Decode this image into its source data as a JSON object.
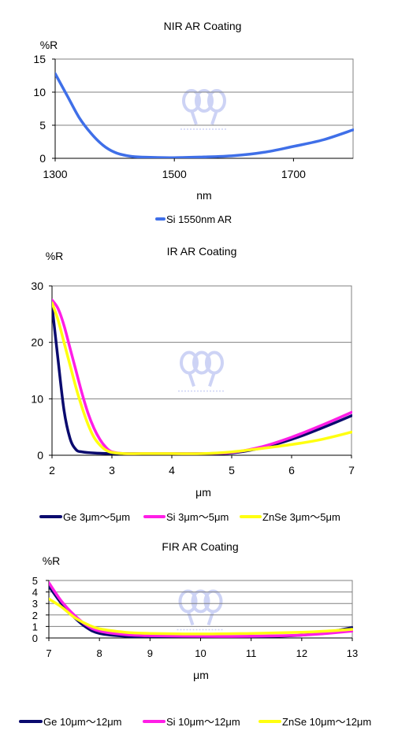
{
  "colors": {
    "nir_si": "#3f6fe8",
    "ge": "#0a0a6e",
    "si": "#ff1ee6",
    "znse": "#ffff10",
    "grid": "#808080",
    "watermark": "#c8cff5"
  },
  "chart_data": [
    {
      "id": "nir",
      "type": "line",
      "title": "NIR AR Coating",
      "ylabel": "%R",
      "xlabel": "nm",
      "xlim": [
        1300,
        1800
      ],
      "ylim": [
        0,
        15
      ],
      "xticks": [
        1300,
        1500,
        1700
      ],
      "yticks": [
        0,
        5,
        10,
        15
      ],
      "grid": true,
      "legend_position": "bottom",
      "series": [
        {
          "name": "Si 1550nm AR",
          "color": "#3f6fe8",
          "x": [
            1300,
            1320,
            1340,
            1360,
            1380,
            1400,
            1420,
            1440,
            1460,
            1500,
            1550,
            1600,
            1650,
            1700,
            1750,
            1800
          ],
          "y": [
            12.8,
            9.5,
            6.2,
            3.8,
            2.0,
            0.9,
            0.4,
            0.2,
            0.15,
            0.1,
            0.2,
            0.4,
            0.9,
            1.8,
            2.8,
            4.3
          ]
        }
      ]
    },
    {
      "id": "ir",
      "type": "line",
      "title": "IR AR Coating",
      "ylabel": "%R",
      "xlabel": "μm",
      "xlim": [
        2,
        7
      ],
      "ylim": [
        0,
        30
      ],
      "xticks": [
        2,
        3,
        4,
        5,
        6,
        7
      ],
      "yticks": [
        0,
        10,
        20,
        30
      ],
      "grid": true,
      "legend_position": "bottom",
      "series": [
        {
          "name": "Ge 3μm～5μm",
          "color": "#0a0a6e",
          "x": [
            2.0,
            2.1,
            2.2,
            2.3,
            2.4,
            2.5,
            2.7,
            3.0,
            3.5,
            4.0,
            4.5,
            5.0,
            5.5,
            6.0,
            6.5,
            7.0
          ],
          "y": [
            26.5,
            17,
            8,
            3,
            1.0,
            0.6,
            0.4,
            0.3,
            0.3,
            0.3,
            0.3,
            0.4,
            1.3,
            2.8,
            4.8,
            7.0
          ]
        },
        {
          "name": "Si 3μm～5μm",
          "color": "#ff1ee6",
          "x": [
            2.0,
            2.1,
            2.2,
            2.3,
            2.4,
            2.5,
            2.6,
            2.7,
            2.8,
            2.9,
            3.0,
            3.2,
            3.5,
            4.0,
            4.5,
            5.0,
            5.5,
            6.0,
            6.5,
            7.0
          ],
          "y": [
            27.5,
            26,
            23,
            19,
            15,
            11,
            7.5,
            4.8,
            2.8,
            1.4,
            0.6,
            0.3,
            0.3,
            0.3,
            0.3,
            0.5,
            1.5,
            3.2,
            5.3,
            7.6
          ]
        },
        {
          "name": "ZnSe 3μm～5μm",
          "color": "#ffff10",
          "x": [
            2.0,
            2.1,
            2.2,
            2.3,
            2.4,
            2.5,
            2.6,
            2.7,
            2.8,
            2.9,
            3.0,
            3.2,
            3.5,
            4.0,
            4.5,
            5.0,
            5.5,
            6.0,
            6.5,
            7.0
          ],
          "y": [
            27,
            24,
            20,
            16,
            12,
            8.5,
            5.5,
            3.2,
            1.8,
            0.9,
            0.5,
            0.3,
            0.3,
            0.3,
            0.3,
            0.6,
            1.2,
            1.9,
            2.8,
            4.1
          ]
        }
      ]
    },
    {
      "id": "fir",
      "type": "line",
      "title": "FIR AR Coating",
      "ylabel": "%R",
      "xlabel": "μm",
      "xlim": [
        7,
        13
      ],
      "ylim": [
        0,
        5
      ],
      "xticks": [
        7,
        8,
        9,
        10,
        11,
        12,
        13
      ],
      "yticks": [
        0,
        1,
        2,
        3,
        4,
        5
      ],
      "grid": true,
      "legend_position": "bottom",
      "series": [
        {
          "name": "Ge 10μm～12μm",
          "color": "#0a0a6e",
          "x": [
            7.0,
            7.25,
            7.5,
            7.75,
            8.0,
            8.5,
            9.0,
            10.0,
            11.0,
            12.0,
            12.5,
            13.0
          ],
          "y": [
            4.5,
            3.0,
            1.8,
            0.9,
            0.4,
            0.15,
            0.1,
            0.1,
            0.1,
            0.25,
            0.5,
            0.9
          ]
        },
        {
          "name": "Si 10μm～12μm",
          "color": "#ff1ee6",
          "x": [
            7.0,
            7.25,
            7.5,
            7.75,
            8.0,
            8.5,
            9.0,
            10.0,
            11.0,
            12.0,
            12.5,
            13.0
          ],
          "y": [
            4.8,
            3.2,
            2.0,
            1.1,
            0.6,
            0.3,
            0.2,
            0.15,
            0.15,
            0.25,
            0.4,
            0.6
          ]
        },
        {
          "name": "ZnSe 10μm～12μm",
          "color": "#ffff10",
          "x": [
            7.0,
            7.25,
            7.5,
            7.75,
            8.0,
            8.5,
            9.0,
            10.0,
            11.0,
            12.0,
            12.5,
            13.0
          ],
          "y": [
            3.4,
            2.7,
            1.8,
            1.2,
            0.8,
            0.5,
            0.4,
            0.35,
            0.4,
            0.5,
            0.6,
            0.75
          ]
        }
      ]
    }
  ]
}
